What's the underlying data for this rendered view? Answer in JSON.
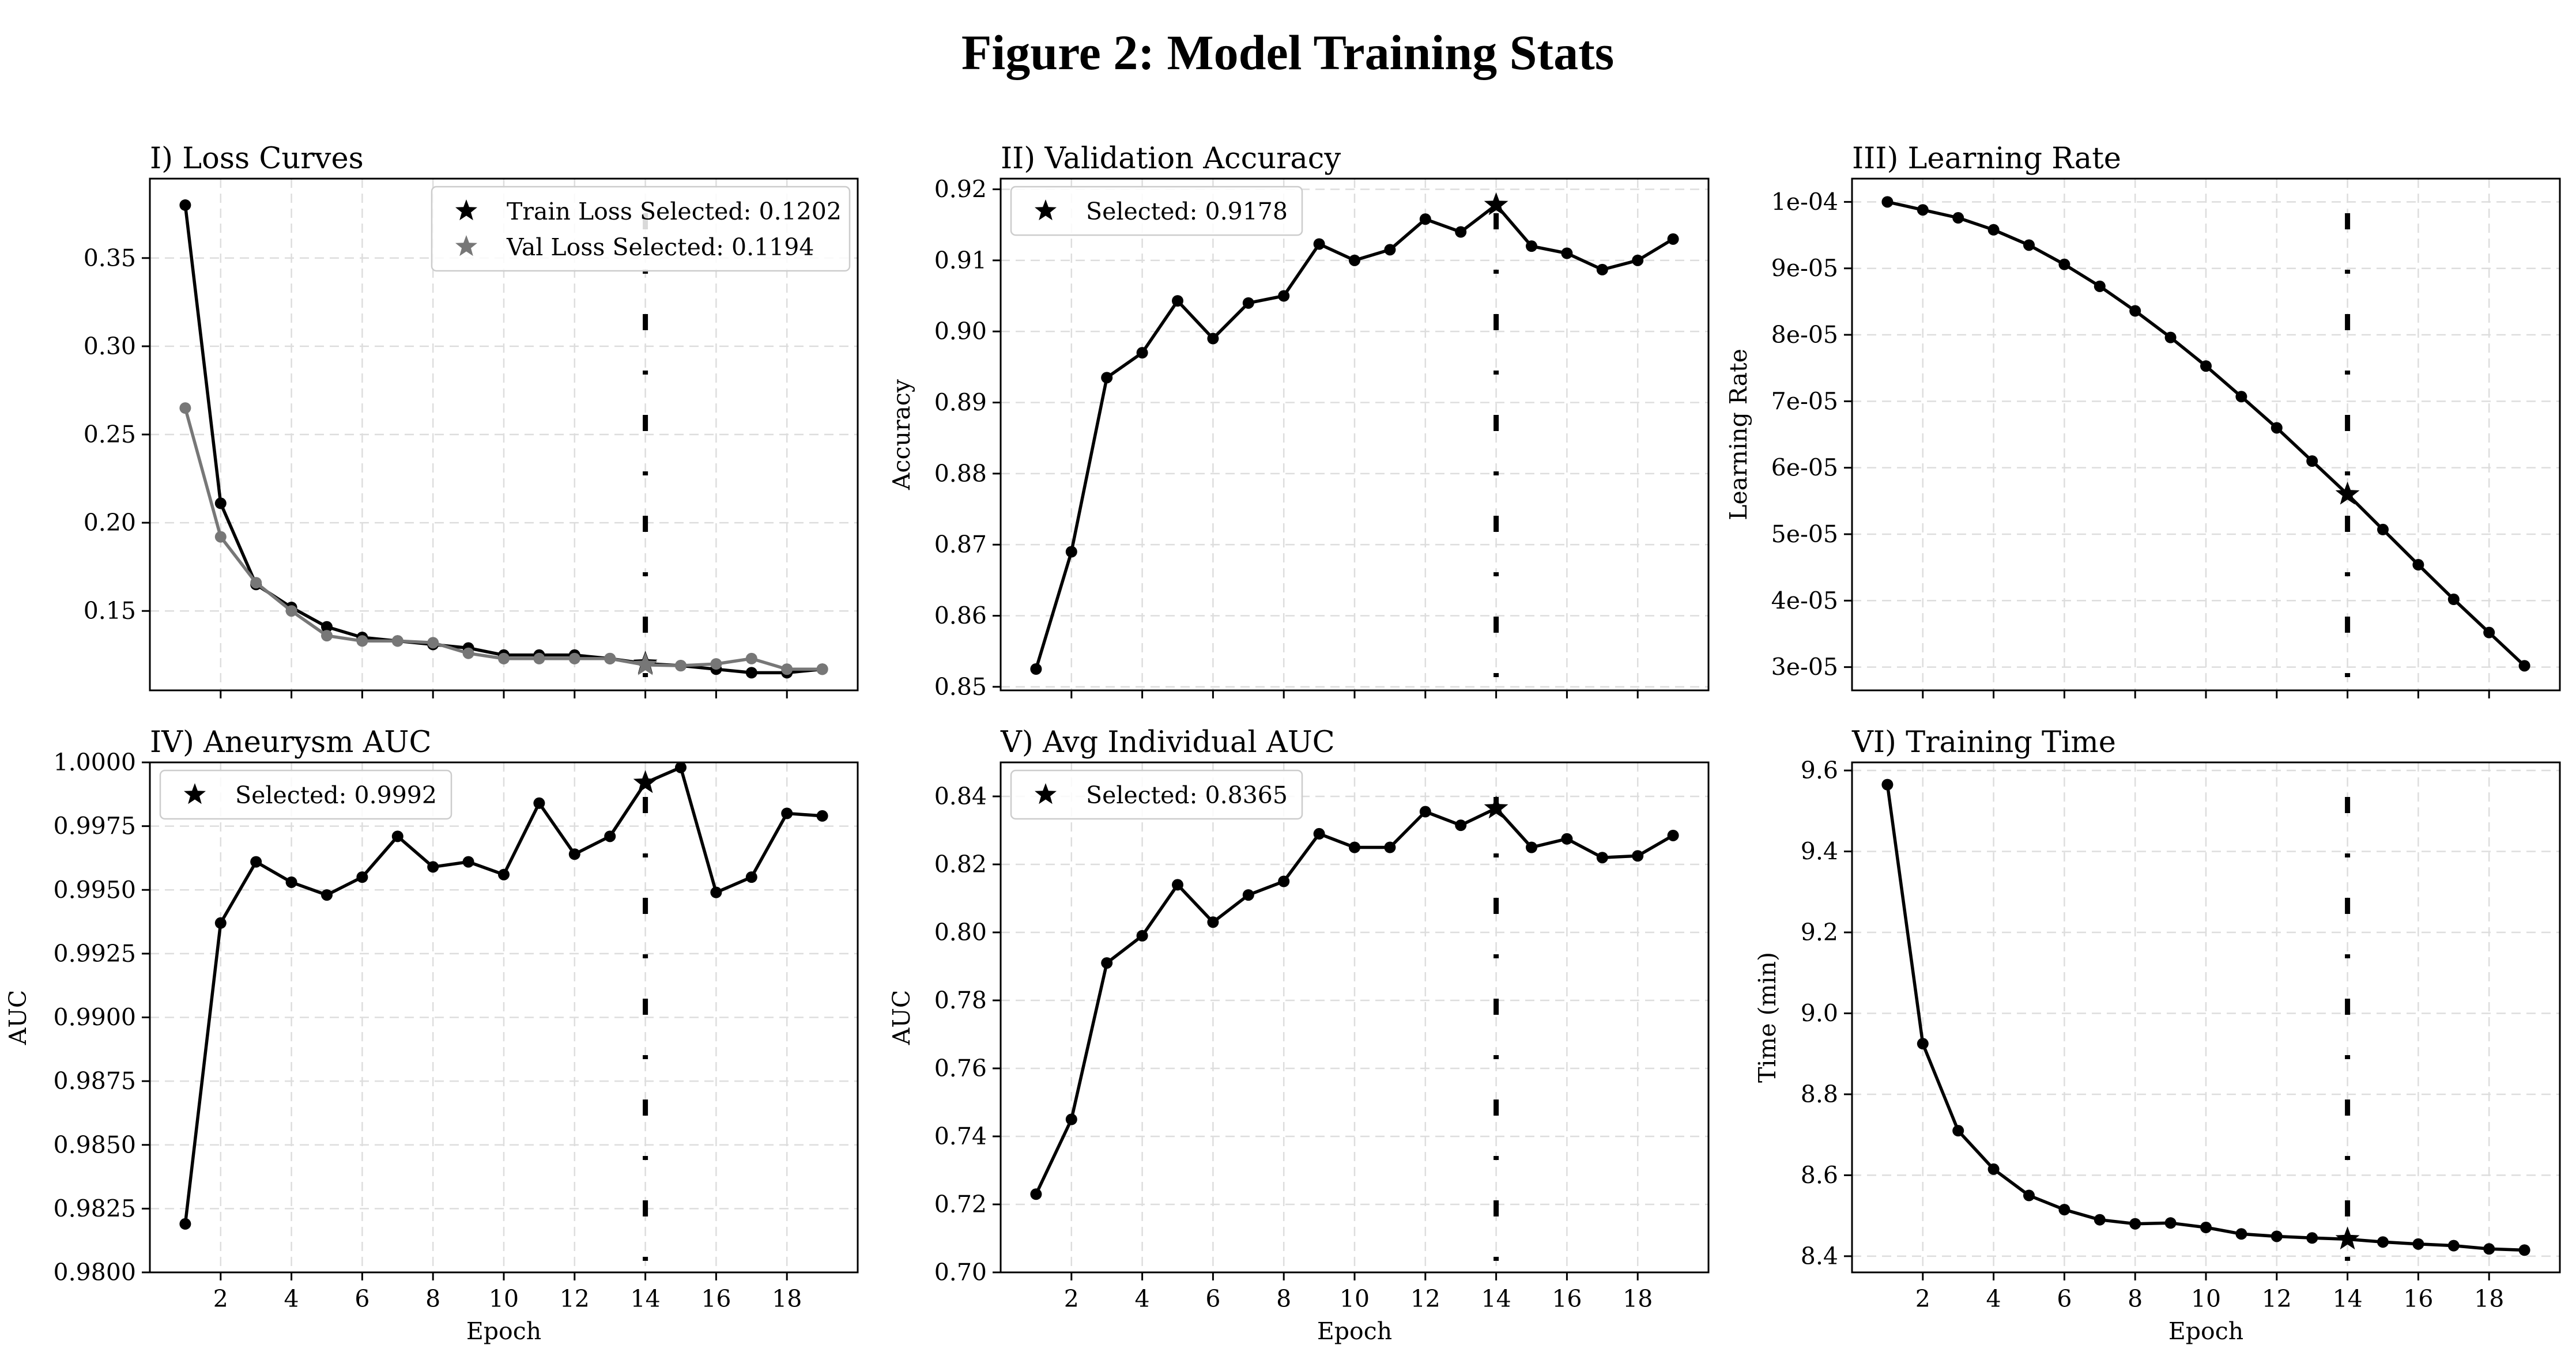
{
  "figure_title": "Figure 2: Model Training Stats",
  "colors": {
    "train": "#000000",
    "val": "#777777",
    "grid": "#dddddd",
    "selected_line": "#000000"
  },
  "chart_data": [
    {
      "id": "loss",
      "type": "line",
      "title": "I) Loss Curves",
      "xlabel": "",
      "ylabel": "",
      "xlim": [
        0,
        20
      ],
      "ylim": [
        0.105,
        0.395
      ],
      "xticks": [],
      "yticks": [
        0.15,
        0.2,
        0.25,
        0.3,
        0.35
      ],
      "ytick_labels": [
        "0.15",
        "0.20",
        "0.25",
        "0.30",
        "0.35"
      ],
      "selected_epoch": 14,
      "grid": true,
      "legend_position": "upper-right",
      "x": [
        1,
        2,
        3,
        4,
        5,
        6,
        7,
        8,
        9,
        10,
        11,
        12,
        13,
        14,
        15,
        16,
        17,
        18,
        19
      ],
      "series": [
        {
          "name": "Train Loss",
          "color": "#000000",
          "values": [
            0.38,
            0.211,
            0.165,
            0.152,
            0.141,
            0.135,
            0.133,
            0.131,
            0.129,
            0.125,
            0.125,
            0.125,
            0.123,
            0.1202,
            0.119,
            0.117,
            0.115,
            0.115,
            0.117
          ]
        },
        {
          "name": "Val Loss",
          "color": "#777777",
          "values": [
            0.265,
            0.192,
            0.166,
            0.15,
            0.136,
            0.133,
            0.133,
            0.132,
            0.126,
            0.123,
            0.123,
            0.123,
            0.123,
            0.1194,
            0.119,
            0.12,
            0.123,
            0.117,
            0.117
          ]
        }
      ],
      "legend": [
        {
          "label": "Train Loss Selected: 0.1202",
          "color": "#000000"
        },
        {
          "label": "Val Loss Selected: 0.1194",
          "color": "#777777"
        }
      ]
    },
    {
      "id": "acc",
      "type": "line",
      "title": "II) Validation Accuracy",
      "xlabel": "",
      "ylabel": "Accuracy",
      "xlim": [
        0,
        20
      ],
      "ylim": [
        0.8495,
        0.9215
      ],
      "xticks": [],
      "yticks": [
        0.85,
        0.86,
        0.87,
        0.88,
        0.89,
        0.9,
        0.91,
        0.92
      ],
      "ytick_labels": [
        "0.85",
        "0.86",
        "0.87",
        "0.88",
        "0.89",
        "0.90",
        "0.91",
        "0.92"
      ],
      "selected_epoch": 14,
      "grid": true,
      "legend_position": "upper-left",
      "x": [
        1,
        2,
        3,
        4,
        5,
        6,
        7,
        8,
        9,
        10,
        11,
        12,
        13,
        14,
        15,
        16,
        17,
        18,
        19
      ],
      "series": [
        {
          "name": "",
          "color": "#000000",
          "values": [
            0.8525,
            0.869,
            0.8935,
            0.897,
            0.9043,
            0.899,
            0.904,
            0.905,
            0.9123,
            0.91,
            0.9115,
            0.9158,
            0.914,
            0.9178,
            0.912,
            0.911,
            0.9087,
            0.91,
            0.913
          ]
        }
      ],
      "legend": [
        {
          "label": "Selected: 0.9178",
          "color": "#000000"
        }
      ]
    },
    {
      "id": "lr",
      "type": "line",
      "title": "III) Learning Rate",
      "xlabel": "",
      "ylabel": "Learning Rate",
      "xlim": [
        0,
        20
      ],
      "ylim": [
        2.65e-05,
        0.0001035
      ],
      "xticks": [],
      "yticks": [
        3e-05,
        4e-05,
        5e-05,
        6e-05,
        7e-05,
        8e-05,
        9e-05,
        0.0001
      ],
      "ytick_labels": [
        "3e-05",
        "4e-05",
        "5e-05",
        "6e-05",
        "7e-05",
        "8e-05",
        "9e-05",
        "1e-04"
      ],
      "selected_epoch": 14,
      "grid": true,
      "x": [
        1,
        2,
        3,
        4,
        5,
        6,
        7,
        8,
        9,
        10,
        11,
        12,
        13,
        14,
        15,
        16,
        17,
        18,
        19
      ],
      "series": [
        {
          "name": "",
          "color": "#000000",
          "values": [
            0.0001,
            9.88e-05,
            9.76e-05,
            9.58e-05,
            9.35e-05,
            9.06e-05,
            8.73e-05,
            8.36e-05,
            7.96e-05,
            7.53e-05,
            7.07e-05,
            6.6e-05,
            6.1e-05,
            5.6e-05,
            5.07e-05,
            4.54e-05,
            4.02e-05,
            3.52e-05,
            3.02e-05
          ]
        }
      ],
      "legend": []
    },
    {
      "id": "aneurysm",
      "type": "line",
      "title": "IV) Aneurysm AUC",
      "xlabel": "Epoch",
      "ylabel": "AUC",
      "xlim": [
        0,
        20
      ],
      "ylim": [
        0.98,
        1.0
      ],
      "xticks": [
        2,
        4,
        6,
        8,
        10,
        12,
        14,
        16,
        18
      ],
      "yticks": [
        0.98,
        0.9825,
        0.985,
        0.9875,
        0.99,
        0.9925,
        0.995,
        0.9975,
        1.0
      ],
      "ytick_labels": [
        "0.9800",
        "0.9825",
        "0.9850",
        "0.9875",
        "0.9900",
        "0.9925",
        "0.9950",
        "0.9975",
        "1.0000"
      ],
      "selected_epoch": 14,
      "grid": true,
      "legend_position": "upper-left",
      "x": [
        1,
        2,
        3,
        4,
        5,
        6,
        7,
        8,
        9,
        10,
        11,
        12,
        13,
        14,
        15,
        16,
        17,
        18,
        19
      ],
      "series": [
        {
          "name": "",
          "color": "#000000",
          "values": [
            0.9819,
            0.9937,
            0.9961,
            0.9953,
            0.9948,
            0.9955,
            0.9971,
            0.9959,
            0.9961,
            0.9956,
            0.9984,
            0.9964,
            0.9971,
            0.9992,
            0.9998,
            0.9949,
            0.9955,
            0.998,
            0.9979
          ]
        }
      ],
      "legend": [
        {
          "label": "Selected: 0.9992",
          "color": "#000000"
        }
      ]
    },
    {
      "id": "indiv",
      "type": "line",
      "title": "V) Avg Individual AUC",
      "xlabel": "Epoch",
      "ylabel": "AUC",
      "xlim": [
        0,
        20
      ],
      "ylim": [
        0.7,
        0.85
      ],
      "xticks": [
        2,
        4,
        6,
        8,
        10,
        12,
        14,
        16,
        18
      ],
      "yticks": [
        0.7,
        0.72,
        0.74,
        0.76,
        0.78,
        0.8,
        0.82,
        0.84
      ],
      "ytick_labels": [
        "0.70",
        "0.72",
        "0.74",
        "0.76",
        "0.78",
        "0.80",
        "0.82",
        "0.84"
      ],
      "selected_epoch": 14,
      "grid": true,
      "legend_position": "upper-left",
      "x": [
        1,
        2,
        3,
        4,
        5,
        6,
        7,
        8,
        9,
        10,
        11,
        12,
        13,
        14,
        15,
        16,
        17,
        18,
        19
      ],
      "series": [
        {
          "name": "",
          "color": "#000000",
          "values": [
            0.723,
            0.745,
            0.791,
            0.799,
            0.814,
            0.803,
            0.811,
            0.815,
            0.829,
            0.825,
            0.825,
            0.8355,
            0.8315,
            0.8365,
            0.825,
            0.8275,
            0.822,
            0.8225,
            0.8285
          ]
        }
      ],
      "legend": [
        {
          "label": "Selected: 0.8365",
          "color": "#000000"
        }
      ]
    },
    {
      "id": "time",
      "type": "line",
      "title": "VI) Training Time",
      "xlabel": "Epoch",
      "ylabel": "Time (min)",
      "xlim": [
        0,
        20
      ],
      "ylim": [
        8.36,
        9.62
      ],
      "xticks": [
        2,
        4,
        6,
        8,
        10,
        12,
        14,
        16,
        18
      ],
      "yticks": [
        8.4,
        8.6,
        8.8,
        9.0,
        9.2,
        9.4,
        9.6
      ],
      "ytick_labels": [
        "8.4",
        "8.6",
        "8.8",
        "9.0",
        "9.2",
        "9.4",
        "9.6"
      ],
      "selected_epoch": 14,
      "grid": true,
      "x": [
        1,
        2,
        3,
        4,
        5,
        6,
        7,
        8,
        9,
        10,
        11,
        12,
        13,
        14,
        15,
        16,
        17,
        18,
        19
      ],
      "series": [
        {
          "name": "",
          "color": "#000000",
          "values": [
            9.565,
            8.925,
            8.71,
            8.615,
            8.55,
            8.515,
            8.49,
            8.48,
            8.482,
            8.471,
            8.455,
            8.449,
            8.445,
            8.442,
            8.435,
            8.43,
            8.426,
            8.418,
            8.415
          ]
        }
      ],
      "legend": []
    }
  ]
}
